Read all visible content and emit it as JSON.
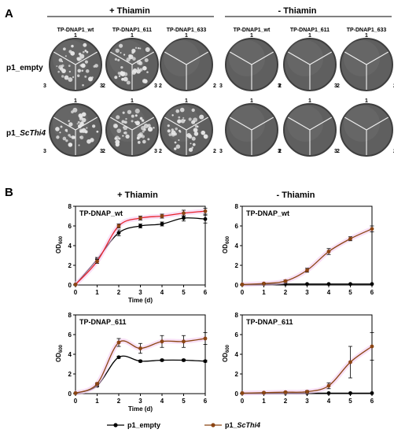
{
  "panel_a": {
    "letter": "A",
    "headers": [
      "+ Thiamin",
      "- Thiamin"
    ],
    "strains": [
      "TP-DNAP1_wt",
      "TP-DNAP1_611",
      "TP-DNAP1_633"
    ],
    "rows": [
      {
        "label": "p1_empty",
        "label_main": "p1_",
        "label_italic": "empty"
      },
      {
        "label": "p1_ScThi4",
        "label_main": "p1_",
        "label_italic": "ScThi4"
      }
    ],
    "sector_labels": [
      "1",
      "2",
      "3"
    ],
    "plate_growth": {
      "plus_thiamin": {
        "p1_empty": [
          [
            "1",
            "2",
            "3"
          ],
          [
            "1",
            "2",
            "3"
          ],
          []
        ],
        "p1_ScThi4": [
          [
            "1",
            "2",
            "3"
          ],
          [
            "1",
            "2",
            "3"
          ],
          [
            "1",
            "2",
            "3"
          ]
        ]
      },
      "minus_thiamin": {
        "p1_empty": [
          [],
          [],
          []
        ],
        "p1_ScThi4": [
          [],
          [],
          []
        ]
      }
    },
    "colors": {
      "plate_bg": "#5f5f5f",
      "plate_dark": "#3e3e3e",
      "colony": "#e6e6e6",
      "divider": "#f2f2f2"
    }
  },
  "panel_b": {
    "letter": "B",
    "headers": [
      "+ Thiamin",
      "- Thiamin"
    ],
    "legend": {
      "items": [
        {
          "label": "p1_empty",
          "label_main": "p1_",
          "label_italic": "empty",
          "color": "#000000"
        },
        {
          "label": "p1_ScThi4",
          "label_main": "p1_",
          "label_italic": "ScThi4",
          "color": "#8b4513"
        }
      ],
      "placement": "bottom-center"
    }
  },
  "chart_data": [
    {
      "type": "line",
      "name": "TP-DNAP_wt",
      "condition": "+ Thiamin",
      "xlabel": "Time (d)",
      "ylabel": "OD600",
      "ylabel_main": "OD",
      "ylabel_sub": "600",
      "xlim": [
        0,
        6
      ],
      "ylim": [
        0,
        8
      ],
      "xticks": [
        "0",
        "1",
        "2",
        "3",
        "4",
        "5",
        "6"
      ],
      "yticks": [
        "0",
        "2",
        "4",
        "6",
        "8"
      ],
      "x": [
        0,
        1,
        2,
        3,
        4,
        5,
        6
      ],
      "series": [
        {
          "name": "p1_empty",
          "color": "#000000",
          "marker": "#000000",
          "values": [
            0.05,
            2.6,
            5.3,
            6.0,
            6.2,
            6.8,
            6.7
          ],
          "errors": [
            0.02,
            0.2,
            0.3,
            0.2,
            0.2,
            0.3,
            0.4
          ]
        },
        {
          "name": "p1_ScThi4",
          "color": "#e8212b",
          "marker": "#8b4513",
          "values": [
            0.05,
            2.4,
            6.0,
            6.8,
            7.0,
            7.3,
            7.5
          ],
          "errors": [
            0.02,
            0.2,
            0.2,
            0.2,
            0.2,
            0.3,
            0.3
          ]
        }
      ]
    },
    {
      "type": "line",
      "name": "TP-DNAP_wt",
      "condition": "- Thiamin",
      "xlabel": "",
      "ylabel": "OD600",
      "ylabel_main": "OD",
      "ylabel_sub": "600",
      "xlim": [
        0,
        6
      ],
      "ylim": [
        0,
        8
      ],
      "xticks": [
        "0",
        "1",
        "2",
        "3",
        "4",
        "5",
        "6"
      ],
      "yticks": [
        "0",
        "2",
        "4",
        "6",
        "8"
      ],
      "x": [
        0,
        1,
        2,
        3,
        4,
        5,
        6
      ],
      "series": [
        {
          "name": "p1_empty",
          "color": "#000000",
          "marker": "#000000",
          "values": [
            0.05,
            0.08,
            0.1,
            0.1,
            0.1,
            0.1,
            0.1
          ],
          "errors": [
            0,
            0,
            0,
            0,
            0,
            0,
            0
          ]
        },
        {
          "name": "p1_ScThi4",
          "color": "#8b4513",
          "marker": "#8b4513",
          "values": [
            0.05,
            0.15,
            0.4,
            1.5,
            3.4,
            4.7,
            5.7
          ],
          "errors": [
            0.02,
            0.05,
            0.1,
            0.2,
            0.3,
            0.2,
            0.3
          ]
        }
      ]
    },
    {
      "type": "line",
      "name": "TP-DNAP_611",
      "condition": "+ Thiamin",
      "xlabel": "Time (d)",
      "ylabel": "OD600",
      "ylabel_main": "OD",
      "ylabel_sub": "600",
      "xlim": [
        0,
        6
      ],
      "ylim": [
        0,
        8
      ],
      "xticks": [
        "0",
        "1",
        "2",
        "3",
        "4",
        "5",
        "6"
      ],
      "yticks": [
        "0",
        "2",
        "4",
        "6",
        "8"
      ],
      "x": [
        0,
        1,
        2,
        3,
        4,
        5,
        6
      ],
      "series": [
        {
          "name": "p1_empty",
          "color": "#000000",
          "marker": "#000000",
          "values": [
            0.05,
            0.8,
            3.7,
            3.3,
            3.4,
            3.4,
            3.3
          ],
          "errors": [
            0.02,
            0.1,
            0.1,
            0.1,
            0.1,
            0.1,
            0.1
          ]
        },
        {
          "name": "p1_ScThi4",
          "color": "#8b4513",
          "marker": "#8b4513",
          "values": [
            0.05,
            1.0,
            5.2,
            4.6,
            5.3,
            5.3,
            5.6
          ],
          "errors": [
            0.02,
            0.1,
            0.4,
            0.5,
            0.6,
            0.6,
            0.6
          ]
        }
      ]
    },
    {
      "type": "line",
      "name": "TP-DNAP_611",
      "condition": "- Thiamin",
      "xlabel": "",
      "ylabel": "OD600",
      "ylabel_main": "OD",
      "ylabel_sub": "600",
      "xlim": [
        0,
        6
      ],
      "ylim": [
        0,
        8
      ],
      "xticks": [
        "0",
        "1",
        "2",
        "3",
        "4",
        "5",
        "6"
      ],
      "yticks": [
        "0",
        "2",
        "4",
        "6",
        "8"
      ],
      "x": [
        0,
        1,
        2,
        3,
        4,
        5,
        6
      ],
      "series": [
        {
          "name": "p1_empty",
          "color": "#000000",
          "marker": "#000000",
          "values": [
            0.05,
            0.05,
            0.05,
            0.05,
            0.05,
            0.05,
            0.05
          ],
          "errors": [
            0,
            0,
            0,
            0,
            0,
            0,
            0
          ]
        },
        {
          "name": "p1_ScThi4",
          "color": "#8b4513",
          "marker": "#8b4513",
          "values": [
            0.05,
            0.1,
            0.15,
            0.2,
            0.8,
            3.2,
            4.8
          ],
          "errors": [
            0.02,
            0.05,
            0.05,
            0.1,
            0.3,
            1.6,
            1.4
          ]
        }
      ]
    }
  ]
}
